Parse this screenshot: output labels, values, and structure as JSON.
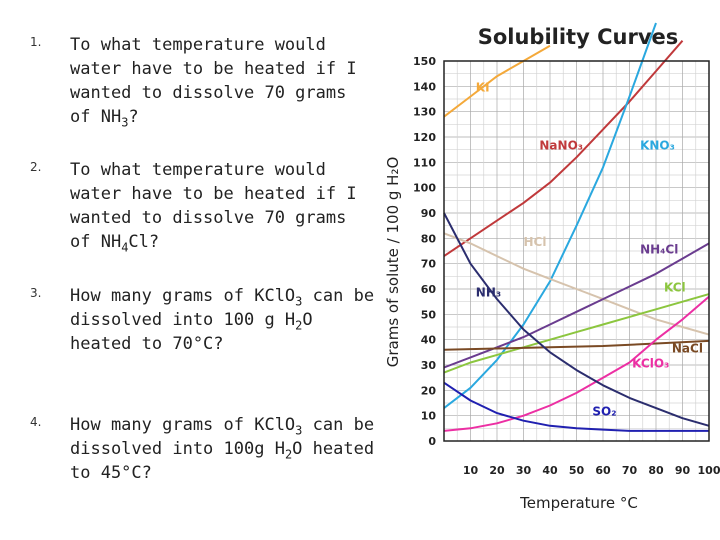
{
  "questions": [
    {
      "number": "1.",
      "pre": "To what temperature would water have to be heated if I wanted to dissolve 70 grams of NH",
      "sub": "3",
      "post": "?"
    },
    {
      "number": "2.",
      "pre": "To what temperature would water have to be heated if I wanted to dissolve 70 grams of NH",
      "sub": "4",
      "post": "Cl?"
    },
    {
      "number": "3.",
      "pre": "How many grams of KClO",
      "sub": "3",
      "mid": " can be dissolved into 100 g H",
      "sub2": "2",
      "post": "O heated to 70°C?"
    },
    {
      "number": "4.",
      "pre": "How many grams of KClO",
      "sub": "3",
      "mid": " can be dissolved into 100g H",
      "sub2": "2",
      "post": "O heated to 45°C?"
    }
  ],
  "chart_data": {
    "type": "line",
    "title": "Solubility Curves",
    "xlabel": "Temperature °C",
    "ylabel": "Grams of solute / 100 g H₂O",
    "xlim": [
      0,
      100
    ],
    "ylim": [
      0,
      150
    ],
    "x_ticks": [
      10,
      20,
      30,
      40,
      50,
      60,
      70,
      80,
      90,
      100
    ],
    "y_ticks": [
      0,
      10,
      20,
      30,
      40,
      50,
      60,
      70,
      80,
      90,
      100,
      110,
      120,
      130,
      140,
      150
    ],
    "grid": true,
    "series": [
      {
        "name": "KI",
        "label": "KI",
        "color": "#f4a93a",
        "points": [
          [
            0,
            128
          ],
          [
            10,
            136
          ],
          [
            20,
            144
          ],
          [
            30,
            150
          ],
          [
            40,
            156
          ]
        ]
      },
      {
        "name": "NaNO3",
        "label": "NaNO₃",
        "color": "#c0393b",
        "points": [
          [
            0,
            73
          ],
          [
            10,
            80
          ],
          [
            20,
            87
          ],
          [
            30,
            94
          ],
          [
            40,
            102
          ],
          [
            50,
            112
          ],
          [
            60,
            123
          ],
          [
            70,
            134
          ],
          [
            80,
            146
          ],
          [
            90,
            158
          ]
        ]
      },
      {
        "name": "KNO3",
        "label": "KNO₃",
        "color": "#2aa8df",
        "points": [
          [
            0,
            13
          ],
          [
            10,
            21
          ],
          [
            20,
            32
          ],
          [
            30,
            46
          ],
          [
            40,
            63
          ],
          [
            50,
            85
          ],
          [
            60,
            108
          ],
          [
            70,
            136
          ],
          [
            80,
            165
          ]
        ]
      },
      {
        "name": "HCl",
        "label": "HCl",
        "color": "#d6c3ad",
        "points": [
          [
            0,
            82
          ],
          [
            10,
            78
          ],
          [
            20,
            73
          ],
          [
            30,
            68
          ],
          [
            40,
            64
          ],
          [
            50,
            60
          ],
          [
            60,
            56
          ],
          [
            70,
            52
          ],
          [
            80,
            48
          ],
          [
            90,
            45
          ],
          [
            100,
            42
          ]
        ]
      },
      {
        "name": "NH4Cl",
        "label": "NH₄Cl",
        "color": "#6a3c8f",
        "points": [
          [
            0,
            29
          ],
          [
            10,
            33
          ],
          [
            20,
            37
          ],
          [
            30,
            41
          ],
          [
            40,
            46
          ],
          [
            50,
            51
          ],
          [
            60,
            56
          ],
          [
            70,
            61
          ],
          [
            80,
            66
          ],
          [
            90,
            72
          ],
          [
            100,
            78
          ]
        ]
      },
      {
        "name": "KCl",
        "label": "KCl",
        "color": "#8cc63f",
        "points": [
          [
            0,
            27
          ],
          [
            10,
            31
          ],
          [
            20,
            34
          ],
          [
            30,
            37
          ],
          [
            40,
            40
          ],
          [
            50,
            43
          ],
          [
            60,
            46
          ],
          [
            70,
            49
          ],
          [
            80,
            52
          ],
          [
            90,
            55
          ],
          [
            100,
            58
          ]
        ]
      },
      {
        "name": "NaCl",
        "label": "NaCl",
        "color": "#7a4a24",
        "points": [
          [
            0,
            36
          ],
          [
            20,
            36.5
          ],
          [
            40,
            37
          ],
          [
            60,
            37.5
          ],
          [
            80,
            38.5
          ],
          [
            100,
            39.5
          ]
        ]
      },
      {
        "name": "KClO3",
        "label": "KClO₃",
        "color": "#ec2fa3",
        "points": [
          [
            0,
            4
          ],
          [
            10,
            5
          ],
          [
            20,
            7
          ],
          [
            30,
            10
          ],
          [
            40,
            14
          ],
          [
            50,
            19
          ],
          [
            60,
            25
          ],
          [
            70,
            31
          ],
          [
            80,
            40
          ],
          [
            90,
            48
          ],
          [
            100,
            57
          ]
        ]
      },
      {
        "name": "NH3",
        "label": "NH₃",
        "color": "#2b2d6e",
        "points": [
          [
            0,
            90
          ],
          [
            10,
            70
          ],
          [
            20,
            56
          ],
          [
            30,
            44
          ],
          [
            40,
            35
          ],
          [
            50,
            28
          ],
          [
            60,
            22
          ],
          [
            70,
            17
          ],
          [
            80,
            13
          ],
          [
            90,
            9
          ],
          [
            100,
            6
          ]
        ]
      },
      {
        "name": "SO2",
        "label": "SO₂",
        "color": "#2020b0",
        "points": [
          [
            0,
            23
          ],
          [
            10,
            16
          ],
          [
            20,
            11
          ],
          [
            30,
            8
          ],
          [
            40,
            6
          ],
          [
            50,
            5
          ],
          [
            60,
            4.5
          ],
          [
            70,
            4
          ],
          [
            80,
            4
          ],
          [
            90,
            4
          ],
          [
            100,
            4
          ]
        ]
      }
    ]
  }
}
